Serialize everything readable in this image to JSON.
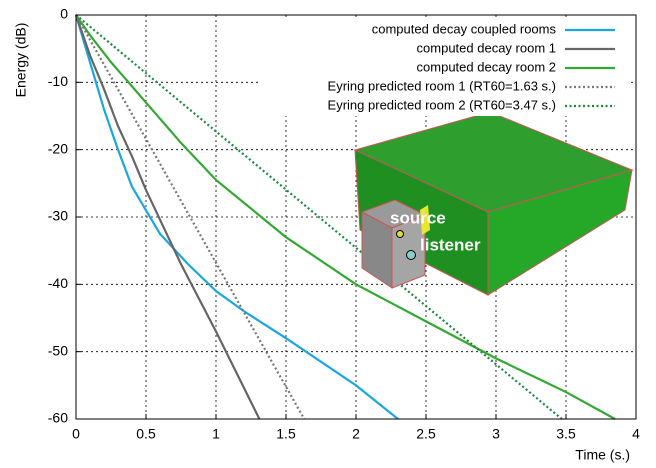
{
  "chart_data": {
    "type": "line",
    "xlabel": "Time (s.)",
    "ylabel": "Energy (dB)",
    "xlim": [
      0,
      4
    ],
    "ylim": [
      -60,
      0
    ],
    "xticks": [
      0,
      0.5,
      1,
      1.5,
      2,
      2.5,
      3,
      3.5,
      4
    ],
    "yticks": [
      -60,
      -50,
      -40,
      -30,
      -20,
      -10,
      0
    ],
    "grid": true,
    "legend": "upper right",
    "series": [
      {
        "name": "computed decay coupled rooms",
        "color": "#1ba6e0",
        "dash": false,
        "x": [
          0,
          0.1,
          0.2,
          0.3,
          0.4,
          0.5,
          0.6,
          0.8,
          1.0,
          1.2,
          1.5,
          2.0,
          2.3
        ],
        "values": [
          0,
          -7,
          -14,
          -20,
          -25.5,
          -29,
          -32.5,
          -37,
          -41,
          -44,
          -48,
          -55,
          -60
        ]
      },
      {
        "name": "computed decay room 1",
        "color": "#666666",
        "dash": false,
        "x": [
          0,
          0.1,
          0.2,
          0.3,
          0.4,
          0.5,
          0.75,
          1.0,
          1.31
        ],
        "values": [
          0,
          -6,
          -11,
          -16.5,
          -21,
          -26,
          -37,
          -47,
          -60
        ]
      },
      {
        "name": "computed decay room 2",
        "color": "#33a833",
        "dash": false,
        "x": [
          0,
          0.1,
          0.25,
          0.5,
          0.75,
          1.0,
          1.5,
          2.0,
          2.5,
          3.0,
          3.5,
          3.85
        ],
        "values": [
          0,
          -3,
          -7,
          -13,
          -19,
          -24.5,
          -33,
          -40,
          -45.5,
          -51,
          -56,
          -60
        ]
      },
      {
        "name": "Eyring predicted room 1 (RT60=1.63 s.)",
        "color": "#777777",
        "dash": true,
        "x": [
          0,
          1.63
        ],
        "values": [
          0,
          -60
        ]
      },
      {
        "name": "Eyring predicted room 2 (RT60=3.47 s.)",
        "color": "#1a8a3a",
        "dash": true,
        "x": [
          0,
          3.47
        ],
        "values": [
          0,
          -60
        ]
      }
    ],
    "annotations": [
      "source",
      "listener"
    ]
  }
}
